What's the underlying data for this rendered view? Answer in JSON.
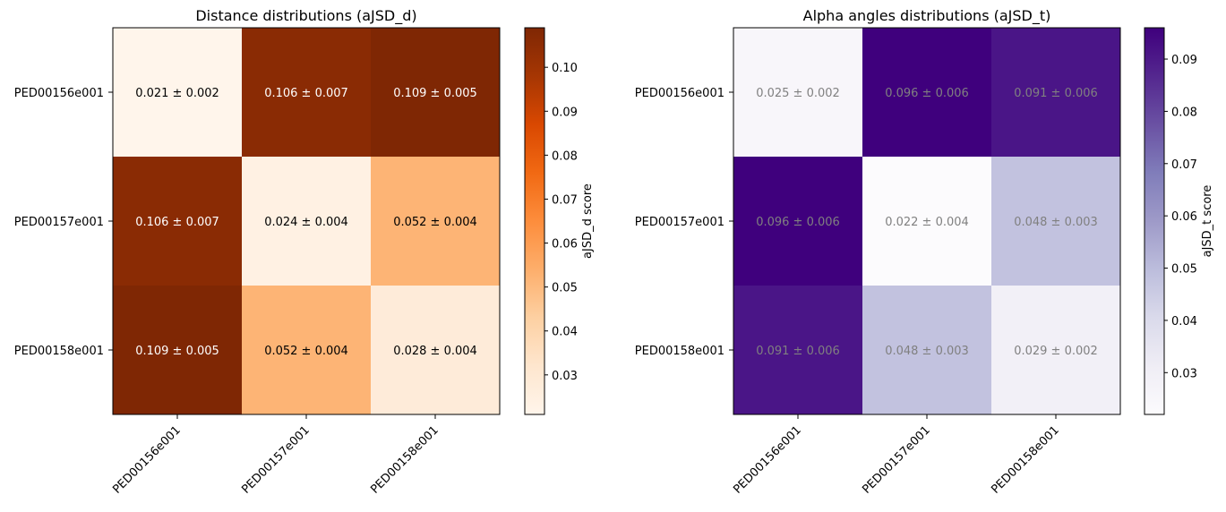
{
  "chart_data": [
    {
      "type": "heatmap",
      "title": "Distance distributions (aJSD_d)",
      "x_categories": [
        "PED00156e001",
        "PED00157e001",
        "PED00158e001"
      ],
      "y_categories": [
        "PED00156e001",
        "PED00157e001",
        "PED00158e001"
      ],
      "values": [
        [
          0.021,
          0.106,
          0.109
        ],
        [
          0.106,
          0.024,
          0.052
        ],
        [
          0.109,
          0.052,
          0.028
        ]
      ],
      "cell_labels": [
        [
          "0.021 ± 0.002",
          "0.106 ± 0.007",
          "0.109 ± 0.005"
        ],
        [
          "0.106 ± 0.007",
          "0.024 ± 0.004",
          "0.052 ± 0.004"
        ],
        [
          "0.109 ± 0.005",
          "0.052 ± 0.004",
          "0.028 ± 0.004"
        ]
      ],
      "colorbar": {
        "label": "aJSD_d score",
        "range": [
          0.021,
          0.109
        ],
        "ticks": [
          0.03,
          0.04,
          0.05,
          0.06,
          0.07,
          0.08,
          0.09,
          0.1
        ],
        "tick_labels": [
          "0.03",
          "0.04",
          "0.05",
          "0.06",
          "0.07",
          "0.08",
          "0.09",
          "0.10"
        ]
      },
      "colormap": "Oranges",
      "colormap_stops": [
        "#fff5eb",
        "#fee6ce",
        "#fdd0a2",
        "#fdae6b",
        "#fd8d3c",
        "#f16913",
        "#d94801",
        "#a63603",
        "#7f2704"
      ],
      "label_colors": {
        "light": "#ffffff",
        "dark": "#000000"
      }
    },
    {
      "type": "heatmap",
      "title": "Alpha angles distributions (aJSD_t)",
      "x_categories": [
        "PED00156e001",
        "PED00157e001",
        "PED00158e001"
      ],
      "y_categories": [
        "PED00156e001",
        "PED00157e001",
        "PED00158e001"
      ],
      "values": [
        [
          0.025,
          0.096,
          0.091
        ],
        [
          0.096,
          0.022,
          0.048
        ],
        [
          0.091,
          0.048,
          0.029
        ]
      ],
      "cell_labels": [
        [
          "0.025 ± 0.002",
          "0.096 ± 0.006",
          "0.091 ± 0.006"
        ],
        [
          "0.096 ± 0.006",
          "0.022 ± 0.004",
          "0.048 ± 0.003"
        ],
        [
          "0.091 ± 0.006",
          "0.048 ± 0.003",
          "0.029 ± 0.002"
        ]
      ],
      "colorbar": {
        "label": "aJSD_t score",
        "range": [
          0.022,
          0.096
        ],
        "ticks": [
          0.03,
          0.04,
          0.05,
          0.06,
          0.07,
          0.08,
          0.09
        ],
        "tick_labels": [
          "0.03",
          "0.04",
          "0.05",
          "0.06",
          "0.07",
          "0.08",
          "0.09"
        ]
      },
      "colormap": "Purples",
      "colormap_stops": [
        "#fcfbfd",
        "#efedf5",
        "#dadaeb",
        "#bcbddc",
        "#9e9ac8",
        "#807dba",
        "#6a51a3",
        "#54278f",
        "#3f007d"
      ],
      "label_colors": {
        "light": "#808080",
        "dark": "#808080"
      }
    }
  ]
}
